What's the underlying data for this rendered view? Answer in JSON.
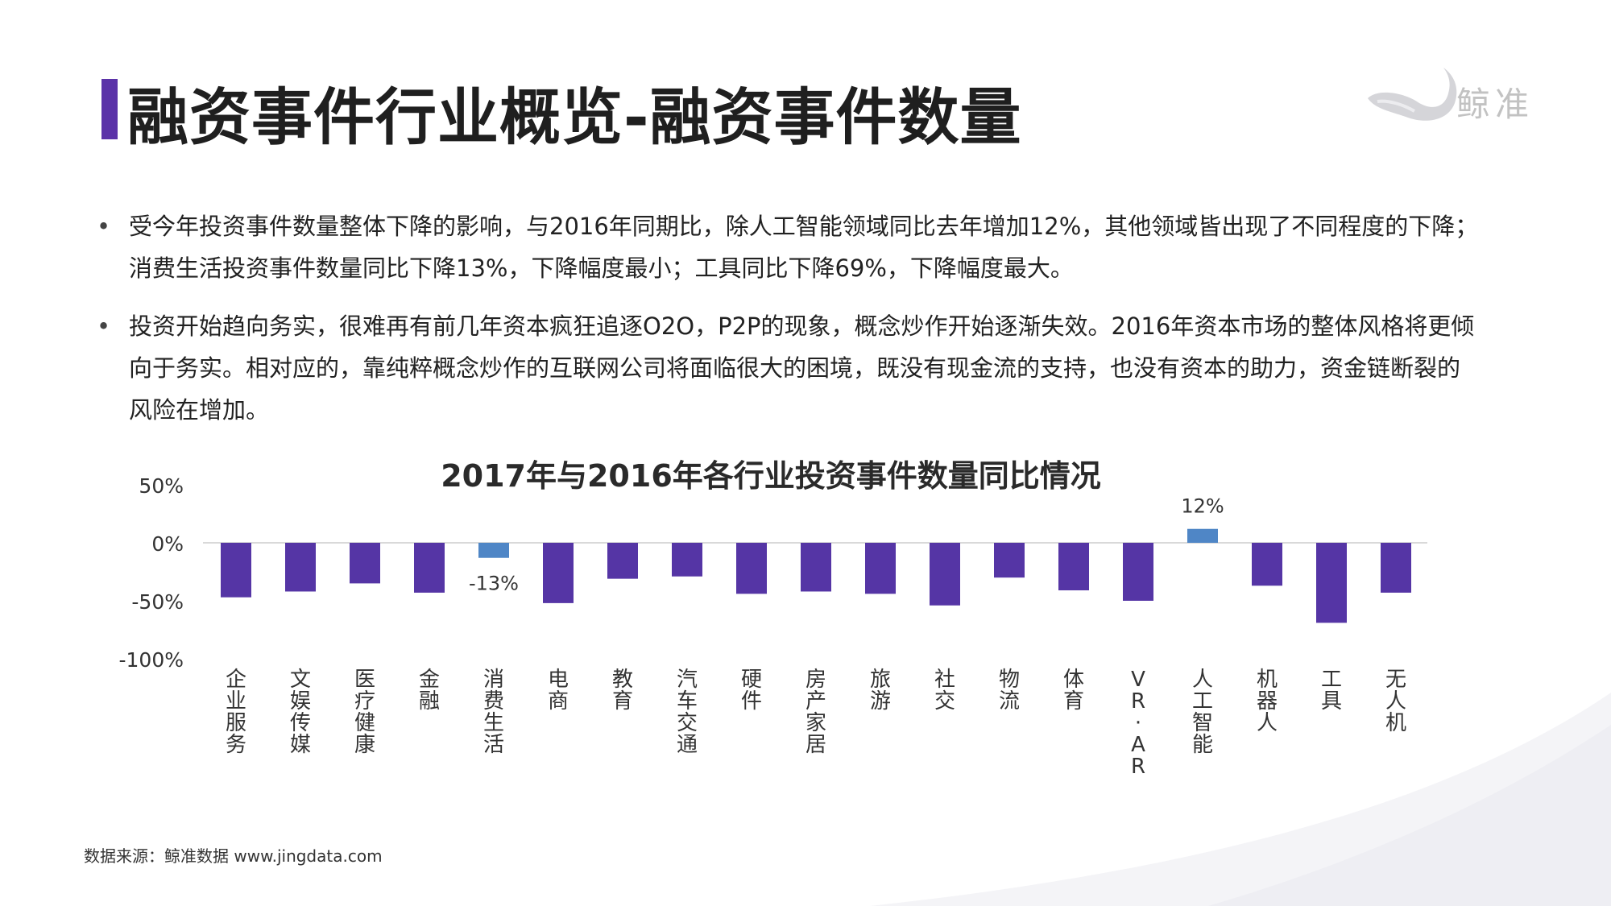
{
  "header": {
    "title": "融资事件行业概览-融资事件数量",
    "logo_text": "鲸准"
  },
  "bullets": [
    "受今年投资事件数量整体下降的影响，与2016年同期比，除人工智能领域同比去年增加12%，其他领域皆出现了不同程度的下降；消费生活投资事件数量同比下降13%，下降幅度最小；工具同比下降69%，下降幅度最大。",
    "投资开始趋向务实，很难再有前几年资本疯狂追逐O2O，P2P的现象，概念炒作开始逐渐失效。2016年资本市场的整体风格将更倾向于务实。相对应的，靠纯粹概念炒作的互联网公司将面临很大的困境，既没有现金流的支持，也没有资本的助力，资金链断裂的风险在增加。"
  ],
  "chart_data": {
    "type": "bar",
    "title": "2017年与2016年各行业投资事件数量同比情况",
    "categories": [
      "企业服务",
      "文娱传媒",
      "医疗健康",
      "金融",
      "消费生活",
      "电商",
      "教育",
      "汽车交通",
      "硬件",
      "房产家居",
      "旅游",
      "社交",
      "物流",
      "体育",
      "VR·AR",
      "人工智能",
      "机器人",
      "工具",
      "无人机"
    ],
    "values": [
      -47,
      -42,
      -35,
      -43,
      -13,
      -52,
      -31,
      -29,
      -44,
      -42,
      -44,
      -54,
      -30,
      -41,
      -50,
      12,
      -37,
      -69,
      -43
    ],
    "data_labels": {
      "4": "-13%",
      "15": "12%"
    },
    "y_ticks": [
      "50%",
      "0%",
      "-50%",
      "-100%"
    ],
    "ylim": [
      -100,
      50
    ],
    "colors": {
      "default": "#5535a5",
      "消费生活": "#4f86c6",
      "人工智能": "#4f86c6"
    },
    "grid": false
  },
  "footer": {
    "source": "数据来源：鲸准数据 www.jingdata.com"
  }
}
